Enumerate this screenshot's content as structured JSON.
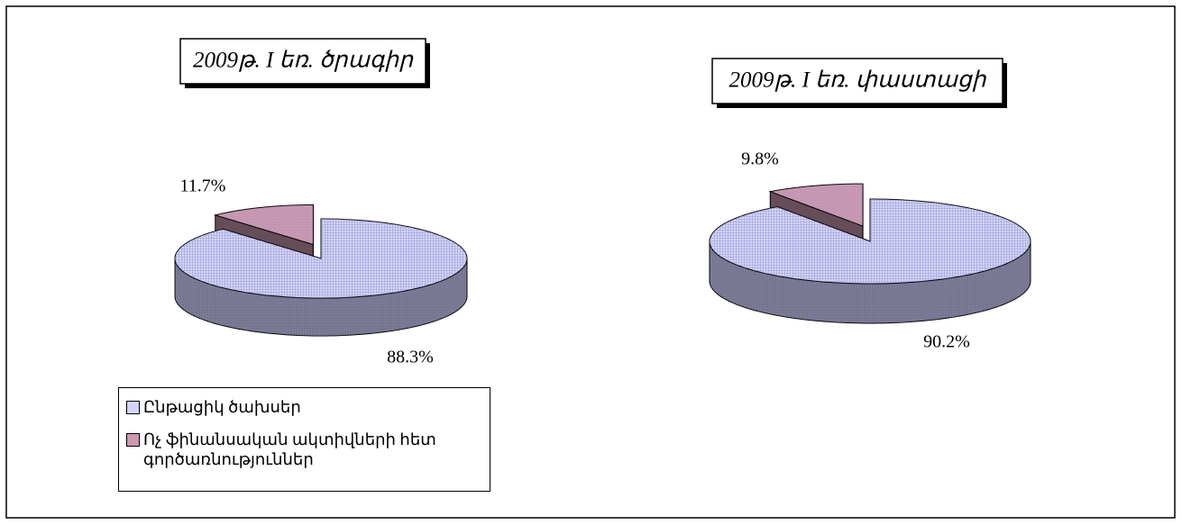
{
  "chart_data": [
    {
      "type": "pie",
      "title": "2009թ. I եռ. ծրագիր",
      "categories": [
        "Ընթացիկ ծախսեր",
        "Ոչ ֆինանսական ակտիվների հետ գործառնություններ"
      ],
      "values": [
        88.3,
        11.7
      ],
      "value_labels": [
        "88.3%",
        "11.7%"
      ],
      "colors": [
        "#d4d4ff",
        "#cc99b0"
      ]
    },
    {
      "type": "pie",
      "title": "2009թ. I եռ. փաստացի",
      "values": [
        90.2,
        9.8
      ],
      "value_labels": [
        "90.2%",
        "9.8%"
      ],
      "colors": [
        "#d4d4ff",
        "#cc99b0"
      ]
    }
  ]
}
